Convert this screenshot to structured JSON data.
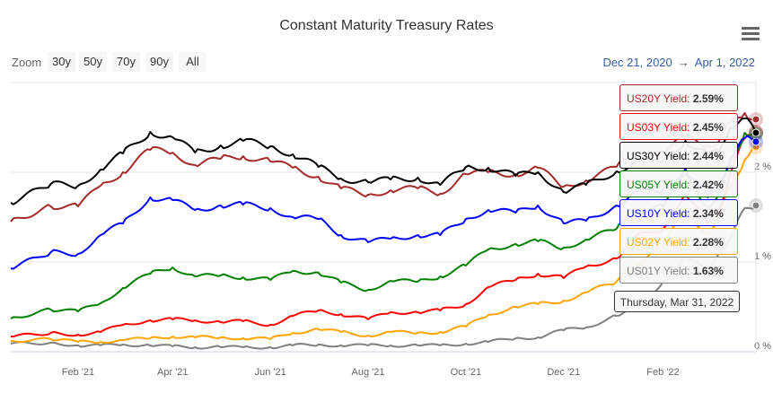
{
  "title": "Constant Maturity Treasury Rates",
  "toolbar": {
    "zoom_label": "Zoom",
    "zoom_buttons": [
      "30y",
      "50y",
      "70y",
      "90y",
      "All"
    ],
    "range_from": "Dec 21, 2020",
    "range_arrow": "→",
    "range_to": "Apr 1, 2022",
    "menu_icon": "hamburger-icon"
  },
  "tooltip": {
    "date": "Thursday, Mar 31, 2022",
    "items": [
      {
        "name": "US20Y",
        "label": "US20Y Yield: ",
        "value": "2.59%",
        "color": "#a52a2a"
      },
      {
        "name": "US03Y",
        "label": "US03Y Yield: ",
        "value": "2.45%",
        "color": "#ff0000"
      },
      {
        "name": "US30Y",
        "label": "US30Y Yield: ",
        "value": "2.44%",
        "color": "#000000"
      },
      {
        "name": "US05Y",
        "label": "US05Y Yield: ",
        "value": "2.42%",
        "color": "#008000"
      },
      {
        "name": "US10Y",
        "label": "US10Y Yield: ",
        "value": "2.34%",
        "color": "#0000ff"
      },
      {
        "name": "US02Y",
        "label": "US02Y Yield: ",
        "value": "2.28%",
        "color": "#ffa500"
      },
      {
        "name": "US01Y",
        "label": "US01Y Yield: ",
        "value": "1.63%",
        "color": "#808080"
      }
    ]
  },
  "chart_data": {
    "type": "line",
    "title": "Constant Maturity Treasury Rates",
    "xlim": [
      "2020-12-21",
      "2022-04-01"
    ],
    "ylim": [
      0,
      3
    ],
    "y_ticks": [
      "0 %",
      "1 %",
      "2 %"
    ],
    "x_ticks": [
      "Feb '21",
      "Apr '21",
      "Jun '21",
      "Aug '21",
      "Oct '21",
      "Dec '21",
      "Feb '22"
    ],
    "grid": true,
    "x": [
      "2020-12-21",
      "2021-01-15",
      "2021-02-01",
      "2021-02-15",
      "2021-03-01",
      "2021-03-18",
      "2021-04-01",
      "2021-04-15",
      "2021-05-01",
      "2021-05-15",
      "2021-06-01",
      "2021-06-15",
      "2021-07-01",
      "2021-07-15",
      "2021-08-01",
      "2021-08-15",
      "2021-09-01",
      "2021-09-15",
      "2021-10-01",
      "2021-10-15",
      "2021-11-01",
      "2021-11-15",
      "2021-12-01",
      "2021-12-15",
      "2022-01-03",
      "2022-01-15",
      "2022-02-01",
      "2022-02-15",
      "2022-03-01",
      "2022-03-08",
      "2022-03-15",
      "2022-03-24",
      "2022-03-31"
    ],
    "series": [
      {
        "name": "US01Y",
        "color": "#808080",
        "values": [
          0.09,
          0.1,
          0.07,
          0.07,
          0.08,
          0.07,
          0.06,
          0.05,
          0.05,
          0.05,
          0.05,
          0.07,
          0.08,
          0.07,
          0.07,
          0.07,
          0.07,
          0.07,
          0.09,
          0.11,
          0.15,
          0.16,
          0.24,
          0.27,
          0.4,
          0.48,
          0.78,
          1.05,
          0.9,
          1.1,
          1.26,
          1.6,
          1.63
        ]
      },
      {
        "name": "US02Y",
        "color": "#ffa500",
        "values": [
          0.12,
          0.14,
          0.11,
          0.11,
          0.13,
          0.15,
          0.17,
          0.16,
          0.16,
          0.15,
          0.14,
          0.21,
          0.25,
          0.22,
          0.18,
          0.22,
          0.21,
          0.22,
          0.28,
          0.41,
          0.5,
          0.53,
          0.57,
          0.66,
          0.78,
          0.97,
          1.18,
          1.58,
          1.3,
          1.5,
          1.85,
          2.14,
          2.28
        ]
      },
      {
        "name": "US03Y",
        "color": "#ff0000",
        "values": [
          0.17,
          0.21,
          0.19,
          0.22,
          0.3,
          0.35,
          0.36,
          0.35,
          0.33,
          0.34,
          0.3,
          0.4,
          0.46,
          0.42,
          0.36,
          0.44,
          0.44,
          0.46,
          0.53,
          0.72,
          0.8,
          0.87,
          0.82,
          0.95,
          1.04,
          1.28,
          1.37,
          1.76,
          1.43,
          1.59,
          1.98,
          2.38,
          2.45
        ]
      },
      {
        "name": "US05Y",
        "color": "#008000",
        "values": [
          0.37,
          0.47,
          0.45,
          0.54,
          0.71,
          0.87,
          0.94,
          0.84,
          0.85,
          0.83,
          0.8,
          0.9,
          0.88,
          0.77,
          0.69,
          0.79,
          0.78,
          0.84,
          0.96,
          1.14,
          1.2,
          1.23,
          1.16,
          1.25,
          1.37,
          1.56,
          1.62,
          1.98,
          1.61,
          1.76,
          2.1,
          2.44,
          2.42
        ]
      },
      {
        "name": "US10Y",
        "color": "#0000ff",
        "values": [
          0.93,
          1.11,
          1.09,
          1.3,
          1.43,
          1.72,
          1.69,
          1.58,
          1.63,
          1.64,
          1.6,
          1.5,
          1.48,
          1.3,
          1.22,
          1.26,
          1.3,
          1.3,
          1.48,
          1.58,
          1.55,
          1.63,
          1.43,
          1.46,
          1.63,
          1.78,
          1.8,
          2.04,
          1.72,
          1.86,
          2.15,
          2.38,
          2.34
        ]
      },
      {
        "name": "US20Y",
        "color": "#a52a2a",
        "values": [
          1.45,
          1.62,
          1.62,
          1.85,
          2.0,
          2.25,
          2.22,
          2.08,
          2.15,
          2.18,
          2.12,
          2.05,
          1.95,
          1.82,
          1.75,
          1.8,
          1.82,
          1.76,
          1.98,
          2.0,
          1.98,
          2.05,
          1.84,
          1.91,
          2.06,
          2.18,
          2.22,
          2.4,
          2.3,
          2.35,
          2.56,
          2.66,
          2.59
        ]
      },
      {
        "name": "US30Y",
        "color": "#000000",
        "values": [
          1.66,
          1.87,
          1.85,
          2.03,
          2.21,
          2.45,
          2.39,
          2.22,
          2.3,
          2.35,
          2.29,
          2.2,
          2.06,
          1.93,
          1.89,
          1.92,
          1.94,
          1.86,
          2.06,
          2.05,
          1.96,
          2.0,
          1.78,
          1.86,
          2.01,
          2.12,
          2.12,
          2.35,
          2.2,
          2.23,
          2.5,
          2.6,
          2.44
        ]
      }
    ]
  }
}
